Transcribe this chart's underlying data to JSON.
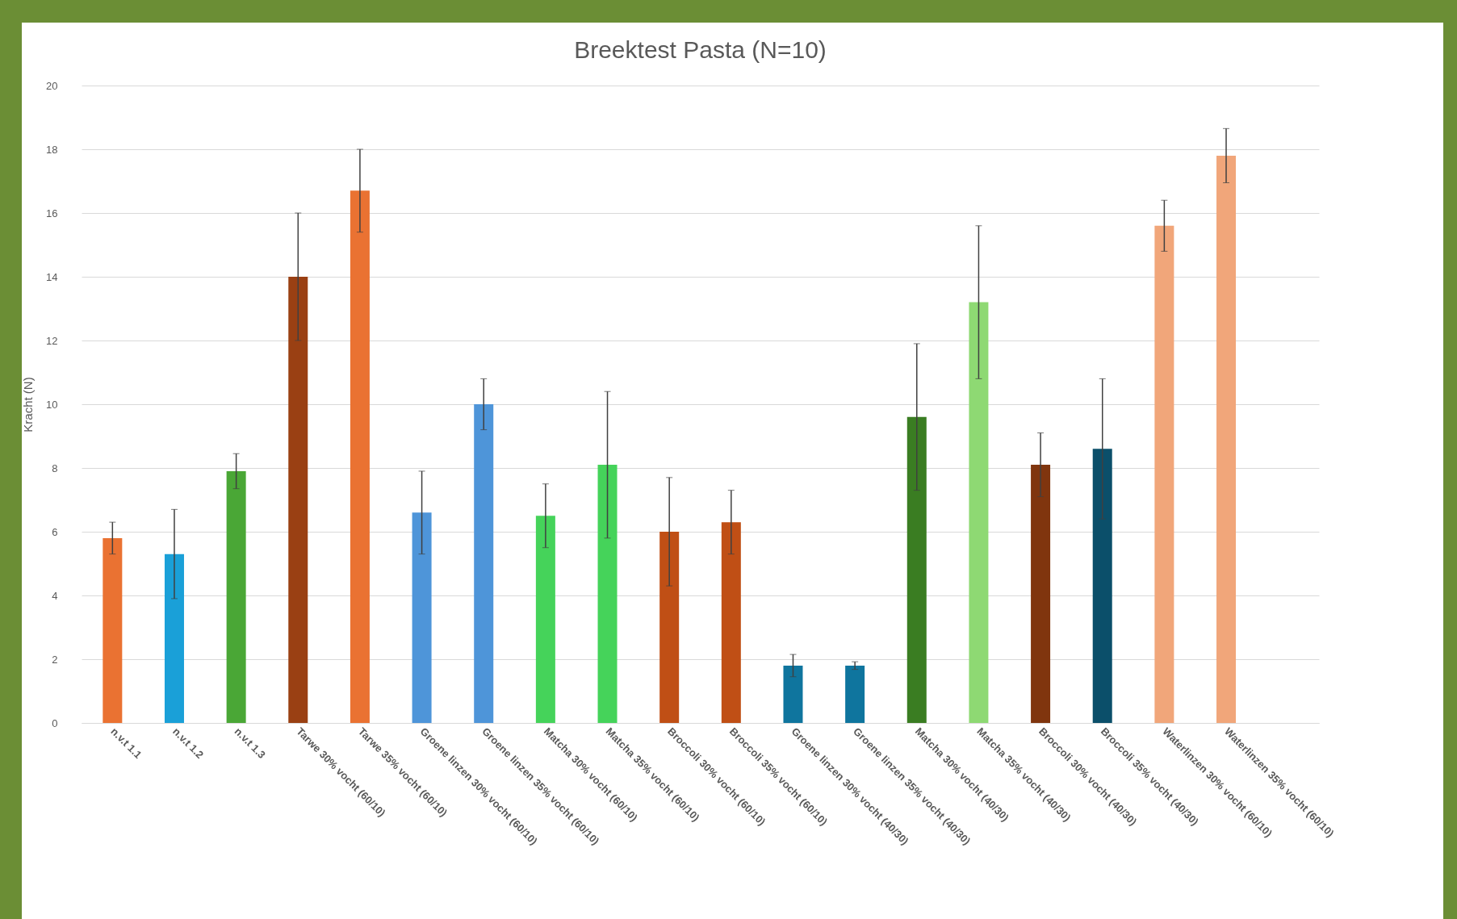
{
  "chart_data": {
    "type": "bar",
    "title": "Breektest Pasta (N=10)",
    "ylabel": "Kracht (N)",
    "categories": [
      "n.v.t 1.1",
      "n.v.t 1.2",
      "n.v.t 1.3",
      "Tarwe 30% vocht (60/10)",
      "Tarwe 35% vocht (60/10)",
      "Groene linzen 30% vocht (60/10)",
      "Groene linzen 35% vocht (60/10)",
      "Matcha 30% vocht (60/10)",
      "Matcha 35% vocht (60/10)",
      "Broccoli 30% vocht (60/10)",
      "Broccoli 35% vocht (60/10)",
      "Groene linzen 30% vocht (40/30)",
      "Groene  linzen 35% vocht (40/30)",
      "Matcha 30% vocht (40/30)",
      "Matcha 35% vocht (40/30)",
      "Broccoli 30% vocht (40/30)",
      "Broccoli  35% vocht (40/30)",
      "Waterlinzen 30% vocht (60/10)",
      "Waterlinzen 35% vocht (60/10)",
      null
    ],
    "values": [
      5.8,
      5.3,
      7.9,
      14.0,
      16.7,
      6.6,
      10.0,
      6.5,
      8.1,
      6.0,
      6.3,
      1.8,
      1.8,
      9.6,
      13.2,
      8.1,
      8.6,
      15.6,
      17.8,
      null
    ],
    "errors": [
      0.5,
      1.4,
      0.55,
      2.0,
      1.3,
      1.3,
      0.8,
      1.0,
      2.3,
      1.7,
      1.0,
      0.35,
      0.12,
      2.3,
      2.4,
      1.0,
      2.2,
      0.8,
      0.85,
      null
    ],
    "colors": [
      "#ea7232",
      "#1aa0d8",
      "#4aa736",
      "#9a4013",
      "#ea7232",
      "#4e95d9",
      "#4e95d9",
      "#45d35a",
      "#45d35a",
      "#c04f15",
      "#c04f15",
      "#0f759e",
      "#0f759e",
      "#3a7d22",
      "#8ed973",
      "#80350e",
      "#0b4f6a",
      "#f1a67a",
      "#f1a67a",
      "#cccccc"
    ],
    "ylim": [
      0,
      20
    ],
    "yticks": [
      0,
      2,
      4,
      6,
      8,
      10,
      12,
      14,
      16,
      18,
      20
    ],
    "grid": true
  }
}
